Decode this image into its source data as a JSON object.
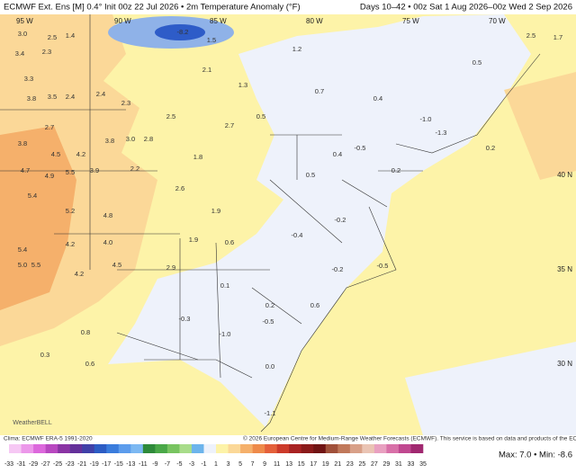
{
  "header": {
    "left": "ECMWF Ext. Ens [M] 0.4° Init 00z 22 Jul 2026 • 2m Temperature Anomaly (°F)",
    "right": "Days 10–42 • 00z Sat 1 Aug 2026–00z Wed 2 Sep 2026"
  },
  "map": {
    "longitudes": [
      "95 W",
      "90 W",
      "85 W",
      "80 W",
      "75 W",
      "70 W"
    ],
    "latitudes": [
      "40 N",
      "35 N",
      "30 N"
    ],
    "anomaly_labels": [
      "3.0",
      "2.5",
      "1.4",
      "3.4",
      "2.3",
      "3.3",
      "3.8",
      "3.5",
      "2.4",
      "2.4",
      "2.3",
      "3.8",
      "2.7",
      "4.5",
      "4.2",
      "3.8",
      "3.0",
      "2.8",
      "4.7",
      "4.9",
      "5.5",
      "3.9",
      "2.2",
      "5.4",
      "5.2",
      "4.8",
      "5.4",
      "4.2",
      "4.0",
      "5.0",
      "5.5",
      "4.2",
      "4.5",
      "2.9",
      "0.8",
      "0.3",
      "0.6",
      "-8.2",
      "1.5",
      "1.2",
      "1.3",
      "0.5",
      "0.7",
      "0.4",
      "-1.0",
      "-1.3",
      "-0.5",
      "0.4",
      "0.5",
      "-0.2",
      "-0.4",
      "-0.2",
      "-0.5",
      "0.1",
      "0.2",
      "-0.3",
      "-1.0",
      "-0.5",
      "0.6",
      "0.0",
      "-1.1",
      "2.5",
      "1.7",
      "0.5",
      "0.2",
      "0.2",
      "2.1",
      "2.6",
      "1.9",
      "1.9",
      "0.6",
      "1.8",
      "2.7",
      "2.5"
    ]
  },
  "footer": {
    "clima": "Clima: ECMWF ERA-5 1991-2020",
    "copyright": "© 2026 European Centre for Medium-Range Weather Forecasts (ECMWF). This service is based on data and products of the ECMWF.",
    "logo": "WeatherBELL",
    "maxmin": "Max: 7.0 • Min: -8.6"
  },
  "colorbar": {
    "ticks": [
      -33,
      -31,
      -29,
      -27,
      -25,
      -23,
      -21,
      -19,
      -17,
      -15,
      -13,
      -11,
      -9,
      -7,
      -5,
      -3,
      -1,
      1,
      3,
      5,
      7,
      9,
      11,
      13,
      15,
      17,
      19,
      21,
      23,
      25,
      27,
      29,
      31,
      33,
      35
    ],
    "colors": [
      "#f6c8f4",
      "#ec98ea",
      "#dc68dc",
      "#b848c0",
      "#8a34a4",
      "#64309a",
      "#4040a8",
      "#2c5cc4",
      "#3a7cdc",
      "#5c9cec",
      "#7cb8f2",
      "#2e8a3a",
      "#4aa848",
      "#78c460",
      "#a8dc8a",
      "#6cb4ec",
      "#eef2fb",
      "#fdf3a8",
      "#fbd898",
      "#f5b06b",
      "#ee8a4a",
      "#e4603a",
      "#cc3a2a",
      "#a82222",
      "#8a1a1a",
      "#701414",
      "#a0503a",
      "#c0785a",
      "#d8a088",
      "#eac4b4",
      "#e8a0c0",
      "#d870a8",
      "#c04890",
      "#a02870"
    ]
  }
}
